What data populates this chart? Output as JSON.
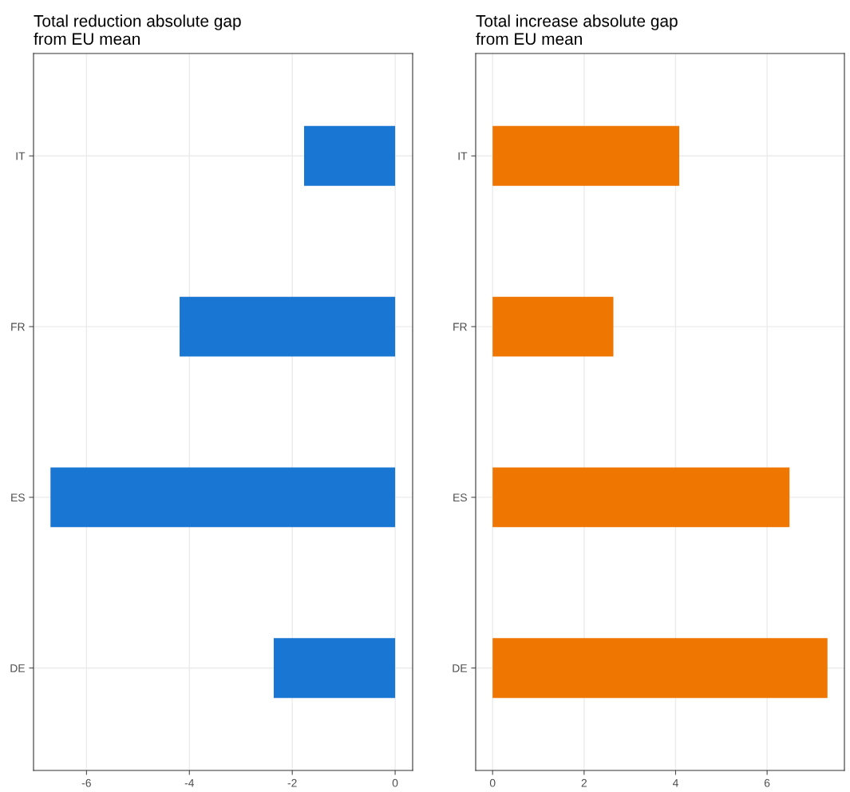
{
  "chart_data": [
    {
      "type": "bar",
      "orientation": "horizontal",
      "title": "Total reduction absolute gap\nfrom EU mean",
      "categories": [
        "IT",
        "FR",
        "ES",
        "DE"
      ],
      "values": [
        -1.77,
        -4.19,
        -6.7,
        -2.36
      ],
      "color": "#1976d2",
      "xlim": [
        -7.03,
        0.34
      ],
      "xticks": [
        -6,
        -4,
        -2,
        0
      ],
      "grid": true,
      "legend": false
    },
    {
      "type": "bar",
      "orientation": "horizontal",
      "title": "Total increase absolute gap\nfrom EU mean",
      "categories": [
        "IT",
        "FR",
        "ES",
        "DE"
      ],
      "values": [
        4.08,
        2.64,
        6.49,
        7.32
      ],
      "color": "#ef7600",
      "xlim": [
        -0.37,
        7.69
      ],
      "xticks": [
        0,
        2,
        4,
        6
      ],
      "grid": true,
      "legend": false
    }
  ]
}
